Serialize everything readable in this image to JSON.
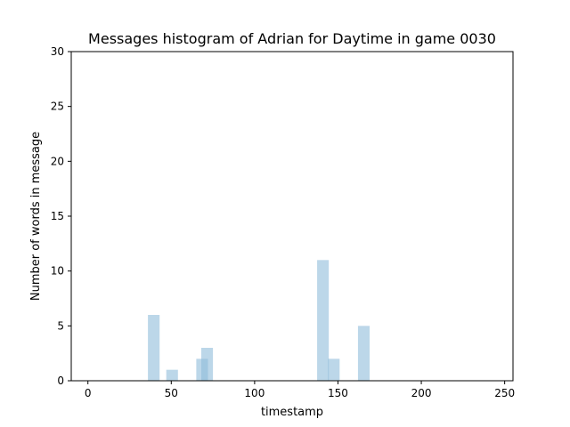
{
  "chart_data": {
    "type": "bar",
    "title": "Messages histogram of Adrian for Daytime in game 0030",
    "xlabel": "timestamp",
    "ylabel": "Number of words in message",
    "xlim": [
      -10,
      255
    ],
    "ylim": [
      0,
      30
    ],
    "xticks": [
      0,
      50,
      100,
      150,
      200,
      250
    ],
    "yticks": [
      0,
      5,
      10,
      15,
      20,
      25,
      30
    ],
    "bar_color": "#8fbcdb",
    "bar_opacity": 0.6,
    "grid": false,
    "bars": [
      {
        "x": 39.5,
        "width": 7.0,
        "value": 6
      },
      {
        "x": 50.5,
        "width": 7.0,
        "value": 1
      },
      {
        "x": 68.5,
        "width": 7.0,
        "value": 2
      },
      {
        "x": 71.5,
        "width": 7.0,
        "value": 3
      },
      {
        "x": 141.0,
        "width": 7.0,
        "value": 11
      },
      {
        "x": 147.5,
        "width": 7.0,
        "value": 2
      },
      {
        "x": 165.5,
        "width": 7.0,
        "value": 5
      }
    ]
  }
}
